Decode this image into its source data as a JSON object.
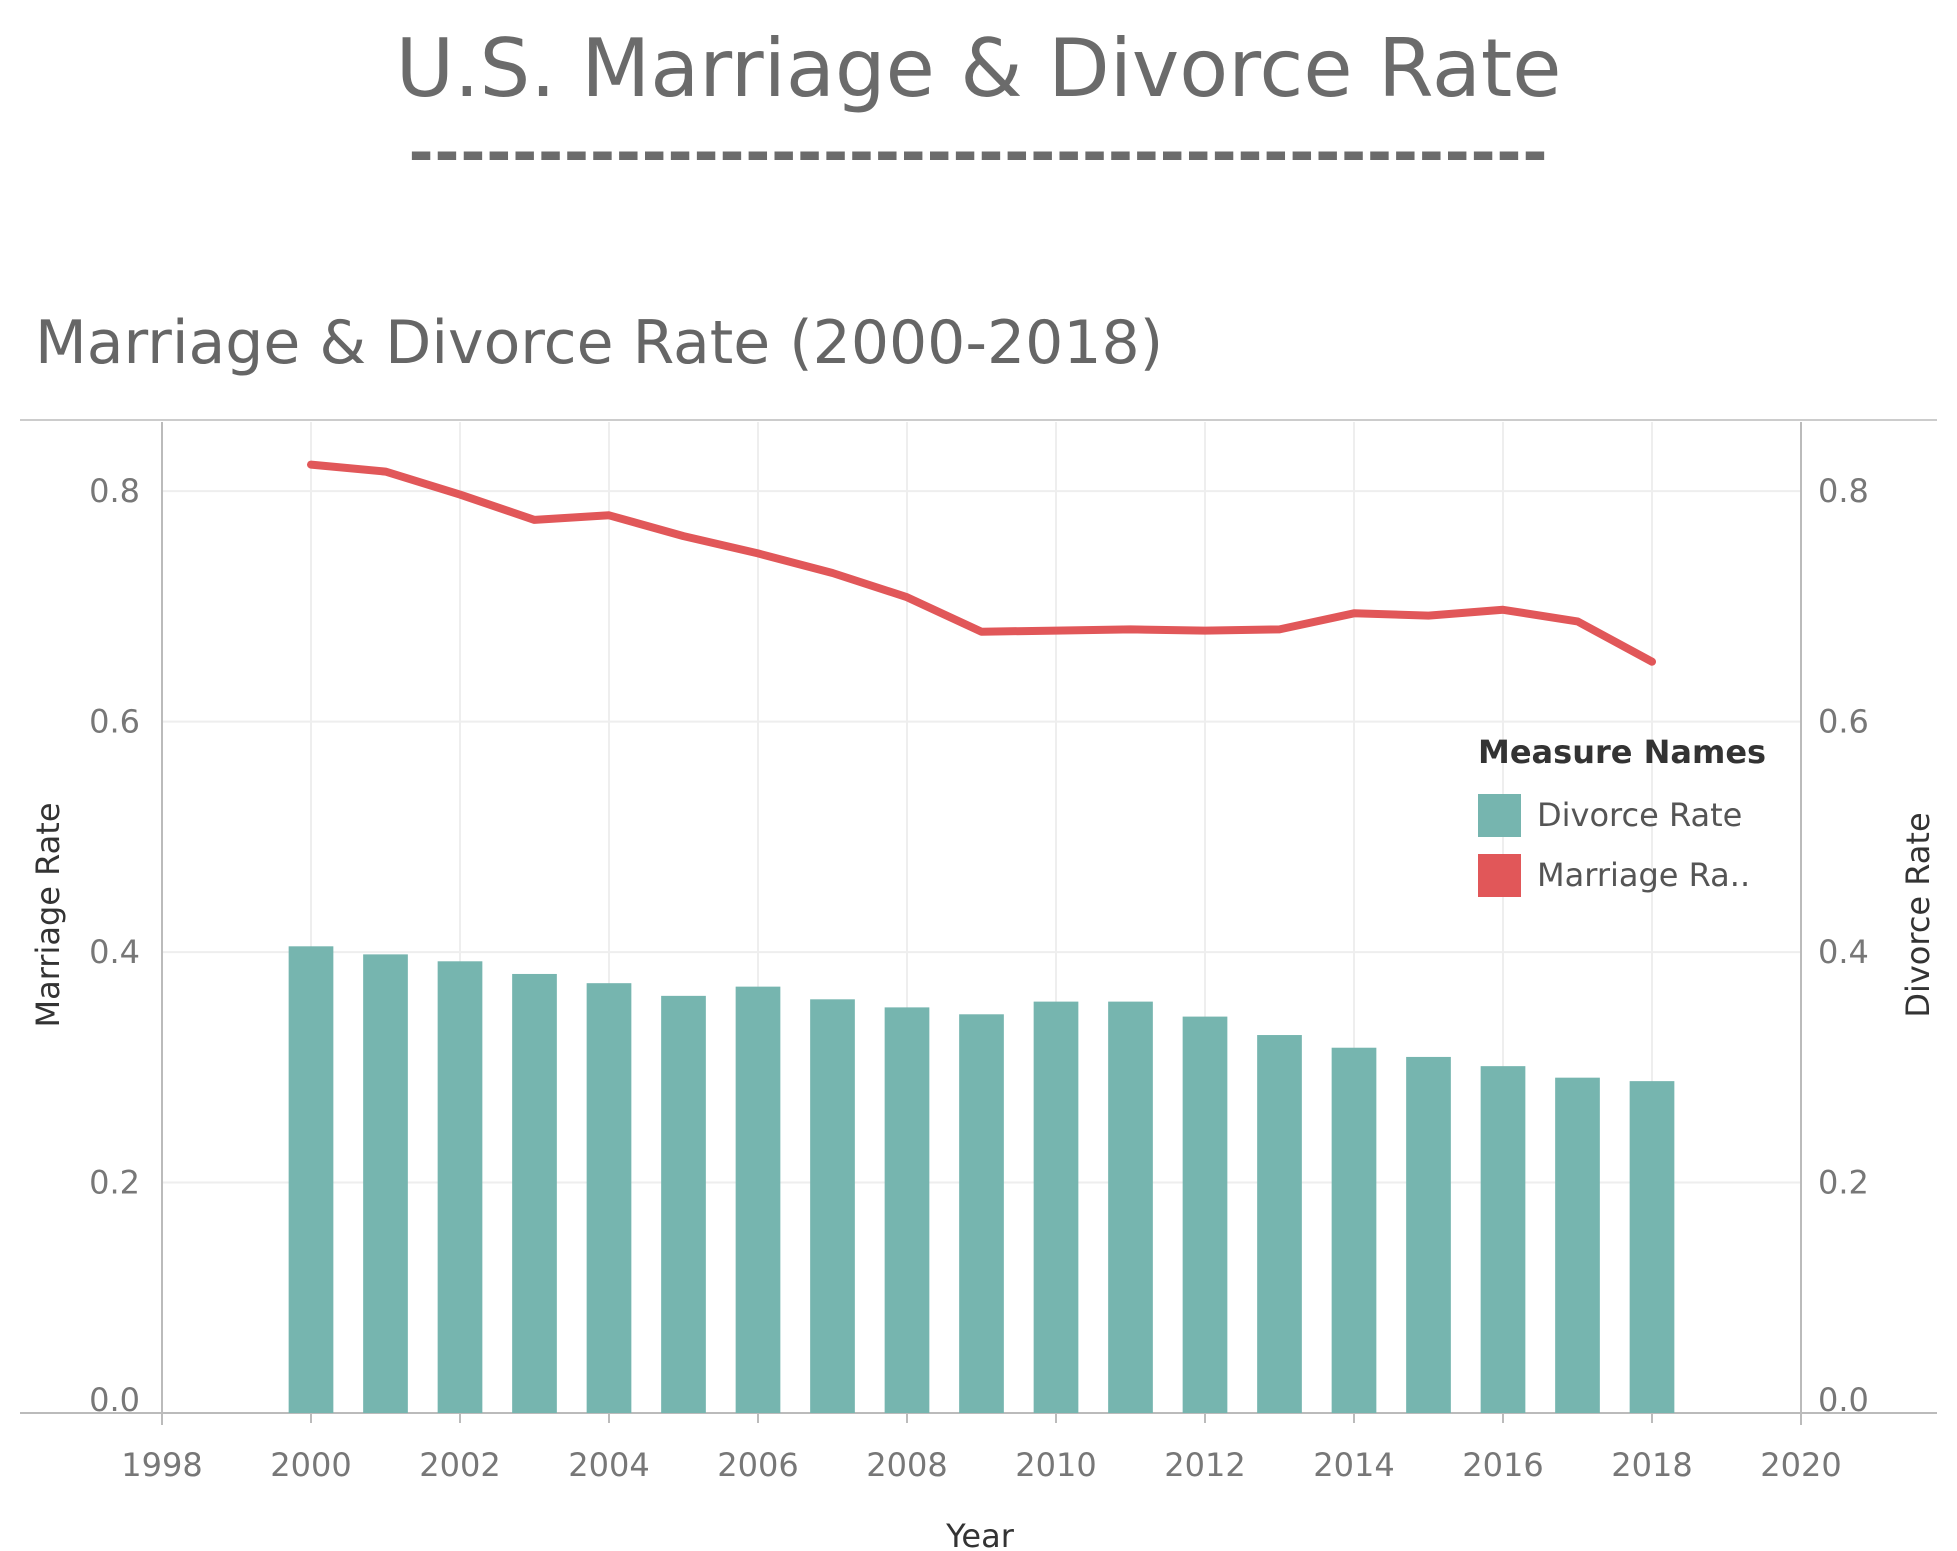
{
  "page": {
    "main_title": "U.S. Marriage & Divorce Rate",
    "title_rule": "--------------------------------------------"
  },
  "chart_data": {
    "type": "bar-line-combo",
    "title": "Marriage & Divorce Rate (2000-2018)",
    "xlabel": "Year",
    "ylabel_left": "Marriage Rate",
    "ylabel_right": "Divorce Rate",
    "xlim": [
      1998,
      2020
    ],
    "ylim": [
      0.0,
      0.86
    ],
    "x_ticks": [
      1998,
      2000,
      2002,
      2004,
      2006,
      2008,
      2010,
      2012,
      2014,
      2016,
      2018,
      2020
    ],
    "y_ticks": [
      "0.0",
      "0.2",
      "0.4",
      "0.6",
      "0.8"
    ],
    "grid": true,
    "x": [
      2000,
      2001,
      2002,
      2003,
      2004,
      2005,
      2006,
      2007,
      2008,
      2009,
      2010,
      2011,
      2012,
      2013,
      2014,
      2015,
      2016,
      2017,
      2018
    ],
    "series": [
      {
        "name": "Divorce Rate",
        "kind": "bar",
        "axis": "right",
        "color": "#76b5af",
        "values": [
          0.405,
          0.398,
          0.392,
          0.381,
          0.373,
          0.362,
          0.37,
          0.359,
          0.352,
          0.346,
          0.357,
          0.357,
          0.344,
          0.328,
          0.317,
          0.309,
          0.301,
          0.291,
          0.288
        ]
      },
      {
        "name": "Marriage Ra..",
        "kind": "line",
        "axis": "left",
        "color": "#e15759",
        "values": [
          0.823,
          0.817,
          0.797,
          0.775,
          0.779,
          0.761,
          0.746,
          0.729,
          0.708,
          0.678,
          0.679,
          0.68,
          0.679,
          0.68,
          0.694,
          0.692,
          0.697,
          0.687,
          0.652
        ]
      }
    ],
    "legend": {
      "title": "Measure Names",
      "placement": "right-middle"
    }
  }
}
